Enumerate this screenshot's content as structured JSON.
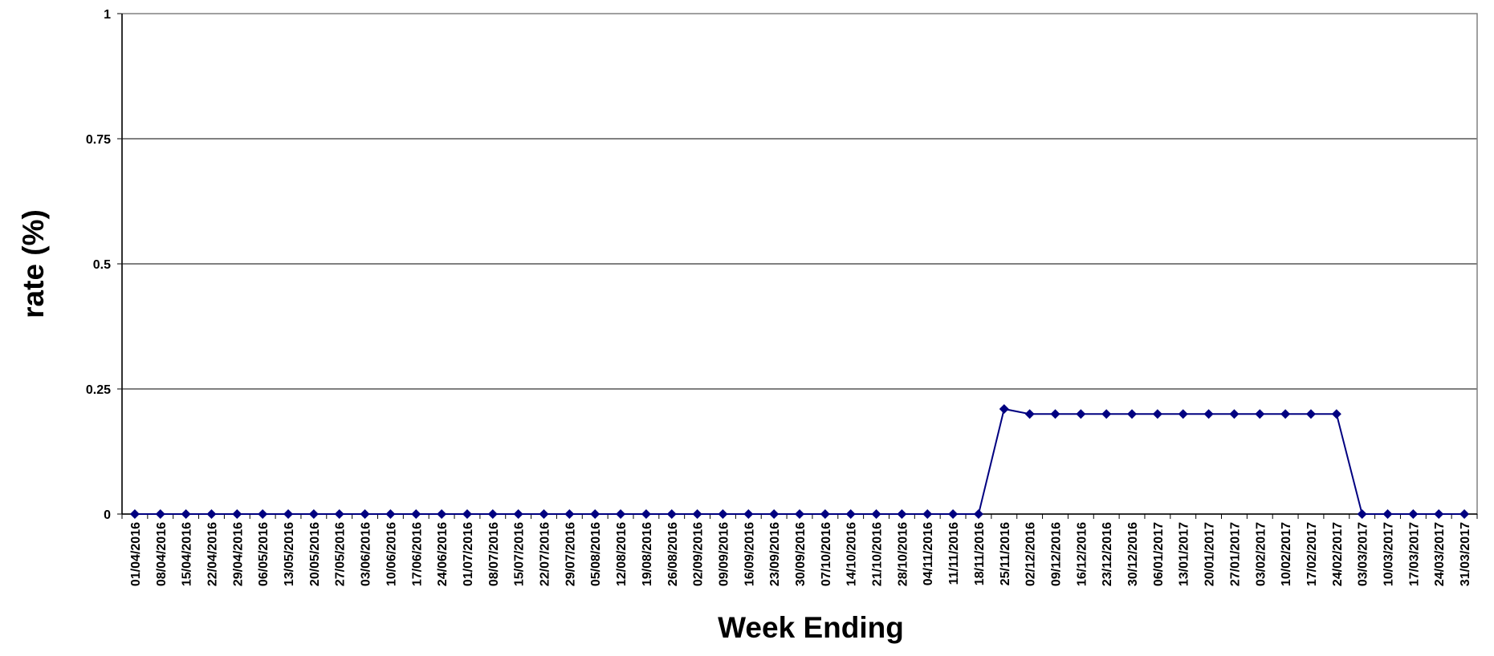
{
  "chart_data": {
    "type": "line",
    "x_label": "Week Ending",
    "y_label": "rate (%)",
    "categories": [
      "01/04/2016",
      "08/04/2016",
      "15/04/2016",
      "22/04/2016",
      "29/04/2016",
      "06/05/2016",
      "13/05/2016",
      "20/05/2016",
      "27/05/2016",
      "03/06/2016",
      "10/06/2016",
      "17/06/2016",
      "24/06/2016",
      "01/07/2016",
      "08/07/2016",
      "15/07/2016",
      "22/07/2016",
      "29/07/2016",
      "05/08/2016",
      "12/08/2016",
      "19/08/2016",
      "26/08/2016",
      "02/09/2016",
      "09/09/2016",
      "16/09/2016",
      "23/09/2016",
      "30/09/2016",
      "07/10/2016",
      "14/10/2016",
      "21/10/2016",
      "28/10/2016",
      "04/11/2016",
      "11/11/2016",
      "18/11/2016",
      "25/11/2016",
      "02/12/2016",
      "09/12/2016",
      "16/12/2016",
      "23/12/2016",
      "30/12/2016",
      "06/01/2017",
      "13/01/2017",
      "20/01/2017",
      "27/01/2017",
      "03/02/2017",
      "10/02/2017",
      "17/02/2017",
      "24/02/2017",
      "03/03/2017",
      "10/03/2017",
      "17/03/2017",
      "24/03/2017",
      "31/03/2017"
    ],
    "series": [
      {
        "color": "#000080",
        "values": [
          0,
          0,
          0,
          0,
          0,
          0,
          0,
          0,
          0,
          0,
          0,
          0,
          0,
          0,
          0,
          0,
          0,
          0,
          0,
          0,
          0,
          0,
          0,
          0,
          0,
          0,
          0,
          0,
          0,
          0,
          0,
          0,
          0,
          0,
          0.21,
          0.2,
          0.2,
          0.2,
          0.2,
          0.2,
          0.2,
          0.2,
          0.2,
          0.2,
          0.2,
          0.2,
          0.2,
          0.2,
          0,
          0,
          0,
          0,
          0
        ]
      }
    ],
    "ylim": [
      0,
      1
    ],
    "yticks": [
      0,
      0.25,
      0.5,
      0.75,
      1
    ],
    "grid": true
  }
}
